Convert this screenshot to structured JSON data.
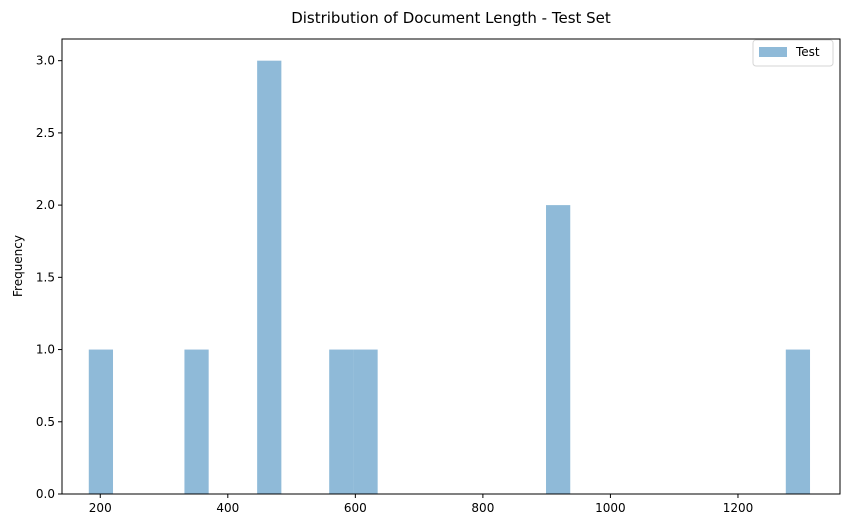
{
  "chart_data": {
    "type": "bar",
    "title": "Distribution of Document Length - Test Set",
    "xlabel": "",
    "ylabel": "Frequency",
    "xlim": [
      140,
      1360
    ],
    "ylim": [
      0,
      3.15
    ],
    "x_ticks": [
      200,
      400,
      600,
      800,
      1000,
      1200
    ],
    "x_tick_labels": [
      "200",
      "400",
      "600",
      "800",
      "1000",
      "1200"
    ],
    "y_ticks": [
      0,
      0.5,
      1.0,
      1.5,
      2.0,
      2.5,
      3.0
    ],
    "y_tick_labels": [
      "0.0",
      "0.5",
      "1.0",
      "1.5",
      "2.0",
      "2.5",
      "3.0"
    ],
    "grid": false,
    "legend_position": "upper right",
    "series": [
      {
        "name": "Test",
        "color": "#8fbad8",
        "bins": [
          {
            "x_start": 182,
            "x_end": 220,
            "value": 1
          },
          {
            "x_start": 332,
            "x_end": 370,
            "value": 1
          },
          {
            "x_start": 446,
            "x_end": 484,
            "value": 3
          },
          {
            "x_start": 559,
            "x_end": 597,
            "value": 1
          },
          {
            "x_start": 597,
            "x_end": 635,
            "value": 1
          },
          {
            "x_start": 899,
            "x_end": 937,
            "value": 2
          },
          {
            "x_start": 1275,
            "x_end": 1313,
            "value": 1
          }
        ]
      }
    ]
  }
}
